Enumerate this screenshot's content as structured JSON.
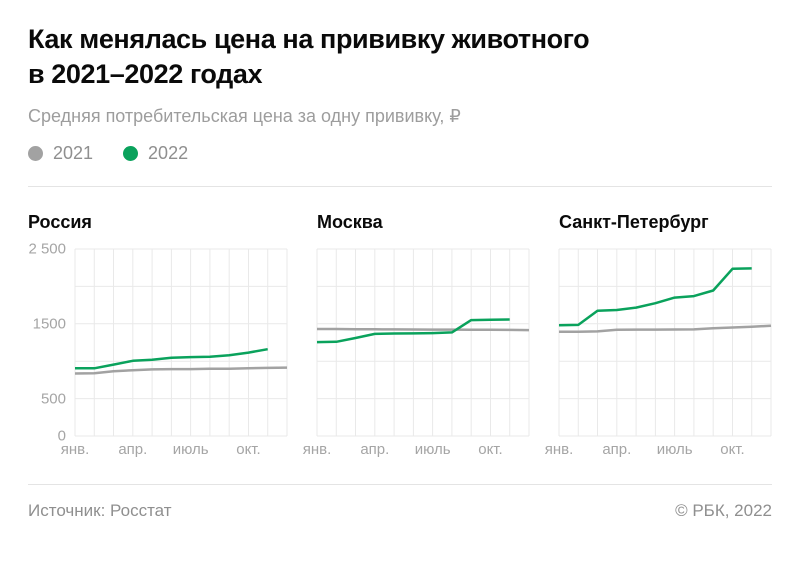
{
  "page": {
    "title_line1": "Как менялась цена на прививку животного",
    "title_line2": "в 2021–2022 годах",
    "subtitle": "Средняя потребительская цена за одну прививку, ₽",
    "source": "Источник: Росстат",
    "copyright": "© РБК, 2022"
  },
  "legend": [
    {
      "label": "2021",
      "color": "#a2a2a2"
    },
    {
      "label": "2022",
      "color": "#0aa25c"
    }
  ],
  "colors": {
    "series_2021": "#a2a2a2",
    "series_2022": "#0aa25c",
    "grid": "#e9e9e9",
    "divider": "#e4e4e4",
    "axis_text": "#a5a5a5",
    "muted_text": "#9d9d9d"
  },
  "chart_data": [
    {
      "type": "line",
      "title": "Россия",
      "months_count": 12,
      "ylim": [
        0,
        2500
      ],
      "grid_step": 500,
      "show_y_axis": true,
      "y_tick_labels": [
        {
          "label": "2 500",
          "value": 2500
        },
        {
          "label": "1500",
          "value": 1500
        },
        {
          "label": "500",
          "value": 500
        },
        {
          "label": "0",
          "value": 0
        }
      ],
      "x_tick_labels": [
        {
          "label": "янв.",
          "month_index": 0
        },
        {
          "label": "апр.",
          "month_index": 3
        },
        {
          "label": "июль",
          "month_index": 6
        },
        {
          "label": "окт.",
          "month_index": 9
        }
      ],
      "series": [
        {
          "name": "2021",
          "color": "#a2a2a2",
          "values": [
            835,
            840,
            865,
            880,
            890,
            895,
            895,
            900,
            900,
            905,
            910,
            915
          ]
        },
        {
          "name": "2022",
          "color": "#0aa25c",
          "values": [
            905,
            905,
            955,
            1005,
            1020,
            1045,
            1055,
            1060,
            1080,
            1115,
            1160
          ]
        }
      ]
    },
    {
      "type": "line",
      "title": "Москва",
      "months_count": 12,
      "ylim": [
        0,
        2500
      ],
      "grid_step": 500,
      "show_y_axis": false,
      "y_tick_labels": [],
      "x_tick_labels": [
        {
          "label": "янв.",
          "month_index": 0
        },
        {
          "label": "апр.",
          "month_index": 3
        },
        {
          "label": "июль",
          "month_index": 6
        },
        {
          "label": "окт.",
          "month_index": 9
        }
      ],
      "series": [
        {
          "name": "2021",
          "color": "#a2a2a2",
          "values": [
            1430,
            1430,
            1428,
            1426,
            1425,
            1424,
            1423,
            1422,
            1421,
            1420,
            1418,
            1416
          ]
        },
        {
          "name": "2022",
          "color": "#0aa25c",
          "values": [
            1255,
            1260,
            1310,
            1365,
            1370,
            1372,
            1375,
            1385,
            1550,
            1555,
            1557
          ]
        }
      ]
    },
    {
      "type": "line",
      "title": "Санкт-Петербург",
      "months_count": 12,
      "ylim": [
        0,
        2500
      ],
      "grid_step": 500,
      "show_y_axis": false,
      "y_tick_labels": [],
      "x_tick_labels": [
        {
          "label": "янв.",
          "month_index": 0
        },
        {
          "label": "апр.",
          "month_index": 3
        },
        {
          "label": "июль",
          "month_index": 6
        },
        {
          "label": "окт.",
          "month_index": 9
        }
      ],
      "series": [
        {
          "name": "2021",
          "color": "#a2a2a2",
          "values": [
            1395,
            1395,
            1398,
            1420,
            1422,
            1423,
            1424,
            1425,
            1440,
            1450,
            1460,
            1475
          ]
        },
        {
          "name": "2022",
          "color": "#0aa25c",
          "values": [
            1480,
            1485,
            1675,
            1685,
            1717,
            1776,
            1850,
            1870,
            1945,
            2235,
            2240
          ]
        }
      ]
    }
  ]
}
